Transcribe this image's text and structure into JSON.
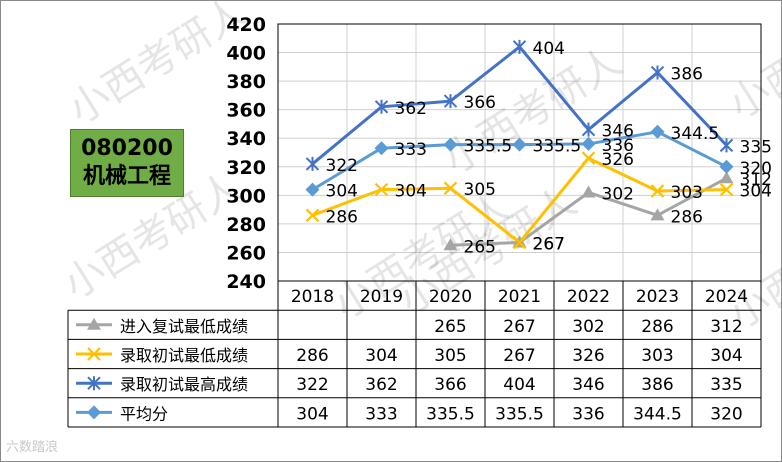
{
  "badge": {
    "code": "080200",
    "name": "机械工程"
  },
  "watermark": {
    "text": "小西考研人",
    "logo": "六数踏浪"
  },
  "chart_data": {
    "type": "line",
    "title": "",
    "xlabel": "",
    "ylabel": "",
    "categories": [
      "2018",
      "2019",
      "2020",
      "2021",
      "2022",
      "2023",
      "2024"
    ],
    "ylim": [
      240,
      420
    ],
    "yticks": [
      240,
      260,
      280,
      300,
      320,
      340,
      360,
      380,
      400,
      420
    ],
    "grid": true,
    "legend": "data-table",
    "series": [
      {
        "name": "进入复试最低成绩",
        "values": [
          null,
          null,
          265,
          267,
          302,
          286,
          312
        ],
        "color": "#a5a5a5",
        "marker": "triangle"
      },
      {
        "name": "录取初试最低成绩",
        "values": [
          286,
          304,
          305,
          267,
          326,
          303,
          304
        ],
        "color": "#ffc000",
        "marker": "x"
      },
      {
        "name": "录取初试最高成绩",
        "values": [
          322,
          362,
          366,
          404,
          346,
          386,
          335
        ],
        "color": "#4472c4",
        "marker": "star"
      },
      {
        "name": "平均分",
        "values": [
          304,
          333,
          335.5,
          335.5,
          336,
          344.5,
          320
        ],
        "color": "#5b9bd5",
        "marker": "diamond"
      }
    ],
    "table": {
      "rows": [
        [
          "",
          "",
          "265",
          "267",
          "302",
          "286",
          "312"
        ],
        [
          "286",
          "304",
          "305",
          "267",
          "326",
          "303",
          "304"
        ],
        [
          "322",
          "362",
          "366",
          "404",
          "346",
          "386",
          "335"
        ],
        [
          "304",
          "333",
          "335.5",
          "335.5",
          "336",
          "344.5",
          "320"
        ]
      ]
    }
  }
}
